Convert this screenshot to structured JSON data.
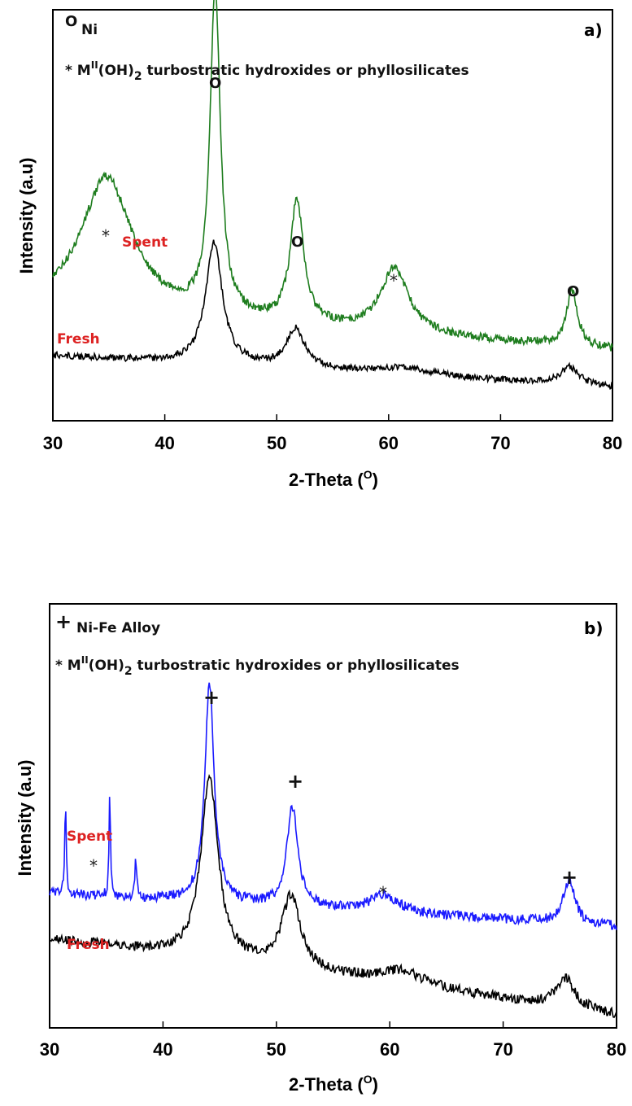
{
  "chart_data": [
    {
      "type": "line",
      "panel_label": "a)",
      "xlabel": "2-Theta (",
      "xlabel_sup": "O",
      "xlabel_end": ")",
      "ylabel": "Intensity (a.u)",
      "xlim": [
        30,
        80
      ],
      "xticks": [
        30,
        40,
        50,
        60,
        70,
        80
      ],
      "legend": {
        "line1_symbol": "O",
        "line1_text": "Ni",
        "line2_prefix": "* M",
        "line2_sup": "II",
        "line2_mid": "(OH)",
        "line2_sub": "2",
        "line2_suffix": " turbostratic hydroxides or phyllosilicates"
      },
      "series": [
        {
          "name": "Spent",
          "color": "#1e7d1e",
          "peaks": [
            {
              "x": 34.8,
              "y": 0.42,
              "w": 2.8
            },
            {
              "x": 44.5,
              "y": 1.0,
              "w": 0.55
            },
            {
              "x": 51.8,
              "y": 0.38,
              "w": 0.7
            },
            {
              "x": 60.5,
              "y": 0.2,
              "w": 1.5
            },
            {
              "x": 76.4,
              "y": 0.17,
              "w": 0.6
            }
          ]
        },
        {
          "name": "Fresh",
          "color": "#000000",
          "peaks": [
            {
              "x": 44.4,
              "y": 0.62,
              "w": 0.9
            },
            {
              "x": 51.7,
              "y": 0.2,
              "w": 1.0
            },
            {
              "x": 61.5,
              "y": 0.04,
              "w": 3.0
            },
            {
              "x": 76.2,
              "y": 0.09,
              "w": 1.0
            }
          ]
        }
      ],
      "annotations": [
        {
          "text": "*",
          "x": 34.8,
          "series": "Spent"
        },
        {
          "text": "O",
          "x": 44.5,
          "series": "Spent"
        },
        {
          "text": "O",
          "x": 51.8,
          "series": "Spent"
        },
        {
          "text": "*",
          "x": 60.5,
          "series": "Spent"
        },
        {
          "text": "O",
          "x": 76.4,
          "series": "Spent"
        }
      ]
    },
    {
      "type": "line",
      "panel_label": "b)",
      "xlabel": "2-Theta (",
      "xlabel_sup": "O",
      "xlabel_end": ")",
      "ylabel": "Intensity (a.u)",
      "xlim": [
        30,
        80
      ],
      "xticks": [
        30,
        40,
        50,
        60,
        70,
        80
      ],
      "legend": {
        "line1_symbol": "+",
        "line1_text": "Ni-Fe Alloy",
        "line2_prefix": "* M",
        "line2_sup": "II",
        "line2_mid": "(OH)",
        "line2_sub": "2",
        "line2_suffix": " turbostratic hydroxides or phyllosilicates"
      },
      "series": [
        {
          "name": "Spent",
          "color": "#1a1aff",
          "peaks": [
            {
              "x": 31.4,
              "y": 0.42,
              "w": 0.08
            },
            {
              "x": 35.3,
              "y": 0.45,
              "w": 0.08
            },
            {
              "x": 37.6,
              "y": 0.2,
              "w": 0.08
            },
            {
              "x": 44.1,
              "y": 1.0,
              "w": 0.5
            },
            {
              "x": 51.4,
              "y": 0.45,
              "w": 0.6
            },
            {
              "x": 59.5,
              "y": 0.08,
              "w": 1.5
            },
            {
              "x": 75.8,
              "y": 0.2,
              "w": 0.6
            }
          ]
        },
        {
          "name": "Fresh",
          "color": "#000000",
          "peaks": [
            {
              "x": 44.1,
              "y": 0.75,
              "w": 0.9
            },
            {
              "x": 51.3,
              "y": 0.3,
              "w": 1.0
            },
            {
              "x": 61.0,
              "y": 0.06,
              "w": 2.5
            },
            {
              "x": 75.5,
              "y": 0.12,
              "w": 1.0
            }
          ]
        }
      ],
      "annotations": [
        {
          "text": "*",
          "x": 33.8,
          "series": "Spent"
        },
        {
          "text": "+",
          "x": 44.1,
          "series": "Spent"
        },
        {
          "text": "+",
          "x": 51.4,
          "series": "Spent"
        },
        {
          "text": "*",
          "x": 59.5,
          "series": "Spent"
        },
        {
          "text": "+",
          "x": 75.8,
          "series": "Spent"
        }
      ]
    }
  ]
}
